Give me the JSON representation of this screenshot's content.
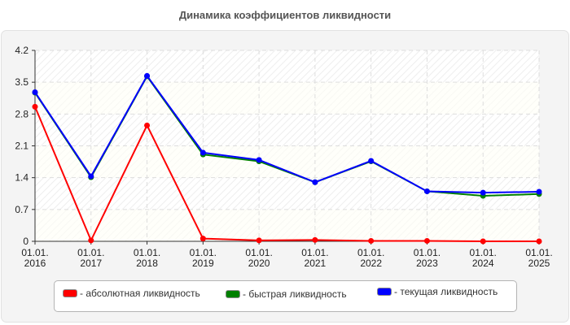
{
  "title": "Динамика коэффициентов ликвидности",
  "chart_data": {
    "type": "line",
    "title": "Динамика коэффициентов ликвидности",
    "xlabel": "",
    "ylabel": "",
    "categories": [
      "01.01.2016",
      "01.01.2017",
      "01.01.2018",
      "01.01.2019",
      "01.01.2020",
      "01.01.2021",
      "01.01.2022",
      "01.01.2023",
      "01.01.2024",
      "01.01.2025"
    ],
    "x_tick_labels": [
      [
        "01.01.",
        "2016"
      ],
      [
        "01.01.",
        "2017"
      ],
      [
        "01.01.",
        "2018"
      ],
      [
        "01.01.",
        "2019"
      ],
      [
        "01.01.",
        "2020"
      ],
      [
        "01.01.",
        "2021"
      ],
      [
        "01.01.",
        "2022"
      ],
      [
        "01.01.",
        "2023"
      ],
      [
        "01.01.",
        "2024"
      ],
      [
        "01.01.",
        "2025"
      ]
    ],
    "y_ticks": [
      "0",
      "0.7",
      "1.4",
      "2.1",
      "2.8",
      "3.5",
      "4.2"
    ],
    "ylim": [
      0,
      4.2
    ],
    "grid": true,
    "legend_position": "bottom",
    "series": [
      {
        "name": "- абсолютная ликвидность",
        "color": "#ff0000",
        "values": [
          2.96,
          0.02,
          2.55,
          0.06,
          0.02,
          0.03,
          0.01,
          0.01,
          0.0,
          0.0
        ]
      },
      {
        "name": "- быстрая ликвидность",
        "color": "#008000",
        "values": [
          3.27,
          1.41,
          3.63,
          1.91,
          1.76,
          1.3,
          1.76,
          1.1,
          1.0,
          1.04
        ]
      },
      {
        "name": "- текущая ликвидность",
        "color": "#0000ff",
        "values": [
          3.28,
          1.43,
          3.64,
          1.95,
          1.79,
          1.3,
          1.77,
          1.1,
          1.07,
          1.09
        ]
      }
    ]
  },
  "legend": {
    "items": [
      {
        "label": "- абсолютная ликвидность",
        "color": "#ff0000"
      },
      {
        "label": "- быстрая ликвидность",
        "color": "#008000"
      },
      {
        "label": "- текущая ликвидность",
        "color": "#0000ff"
      }
    ]
  }
}
